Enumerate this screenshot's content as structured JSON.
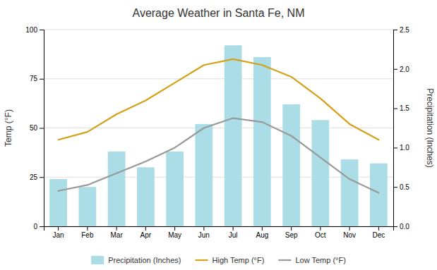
{
  "chart_data": {
    "type": "bar",
    "title": "Average Weather in Santa Fe, NM",
    "y_label": "Temp (°F)",
    "y2_label": "Precipitation (Inches)",
    "categories": [
      "Jan",
      "Feb",
      "Mar",
      "Apr",
      "May",
      "Jun",
      "Jul",
      "Aug",
      "Sep",
      "Oct",
      "Nov",
      "Dec"
    ],
    "series": [
      {
        "name": "Precipitation (Inches)",
        "type": "bar",
        "axis": "y2",
        "color": "#aadde6",
        "values": [
          0.6,
          0.5,
          0.95,
          0.75,
          0.95,
          1.3,
          2.3,
          2.15,
          1.55,
          1.35,
          0.85,
          0.8
        ]
      },
      {
        "name": "High Temp (°F)",
        "type": "line",
        "color": "#d4a017",
        "values": [
          44,
          48,
          57,
          64,
          73,
          82,
          85,
          82,
          76,
          65,
          52,
          44
        ]
      },
      {
        "name": "Low Temp (°F)",
        "type": "line",
        "color": "#999999",
        "values": [
          18,
          21,
          27,
          33,
          40,
          50,
          55,
          53,
          46,
          35,
          24,
          17
        ]
      }
    ],
    "ylim": [
      0,
      100
    ],
    "yticks": [
      0,
      25,
      50,
      75,
      100
    ],
    "y2lim": [
      0,
      2.5
    ],
    "y2ticks": [
      {
        "value": 0,
        "label": "0.0"
      },
      0.5,
      {
        "value": 1.0,
        "label": "1.0"
      },
      1.5,
      {
        "value": 2.0,
        "label": "2.0"
      },
      2.5
    ],
    "grid": true,
    "legend": "bottom"
  }
}
